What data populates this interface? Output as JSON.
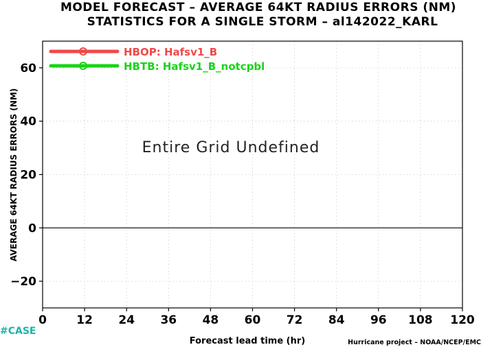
{
  "chart_data": {
    "type": "line",
    "title": "MODEL FORECAST – AVERAGE 64KT RADIUS ERRORS (NM)",
    "subtitle": "STATISTICS FOR A SINGLE STORM – al142022_KARL",
    "xlabel": "Forecast lead time (hr)",
    "ylabel": "AVERAGE 64KT RADIUS ERRORS (NM)",
    "xlim": [
      0,
      120
    ],
    "ylim": [
      -30,
      70
    ],
    "xticks": [
      0,
      12,
      24,
      36,
      48,
      60,
      72,
      84,
      96,
      108,
      120
    ],
    "yticks": [
      -20,
      0,
      20,
      40,
      60
    ],
    "ytick_labels": [
      "−20",
      "0",
      "20",
      "40",
      "60"
    ],
    "grid": true,
    "zero_line": true,
    "legend_position": "top-left",
    "series": [
      {
        "name": "HBOP: Hafsv1_B",
        "color": "#f04848",
        "x": [],
        "y": []
      },
      {
        "name": "HBTB: Hafsv1_B_notcpbl",
        "color": "#18d418",
        "x": [],
        "y": []
      }
    ],
    "annotation": "Entire Grid Undefined"
  },
  "footer": {
    "case_label": "#CASE",
    "credit": "Hurricane project – NOAA/NCEP/EMC"
  }
}
